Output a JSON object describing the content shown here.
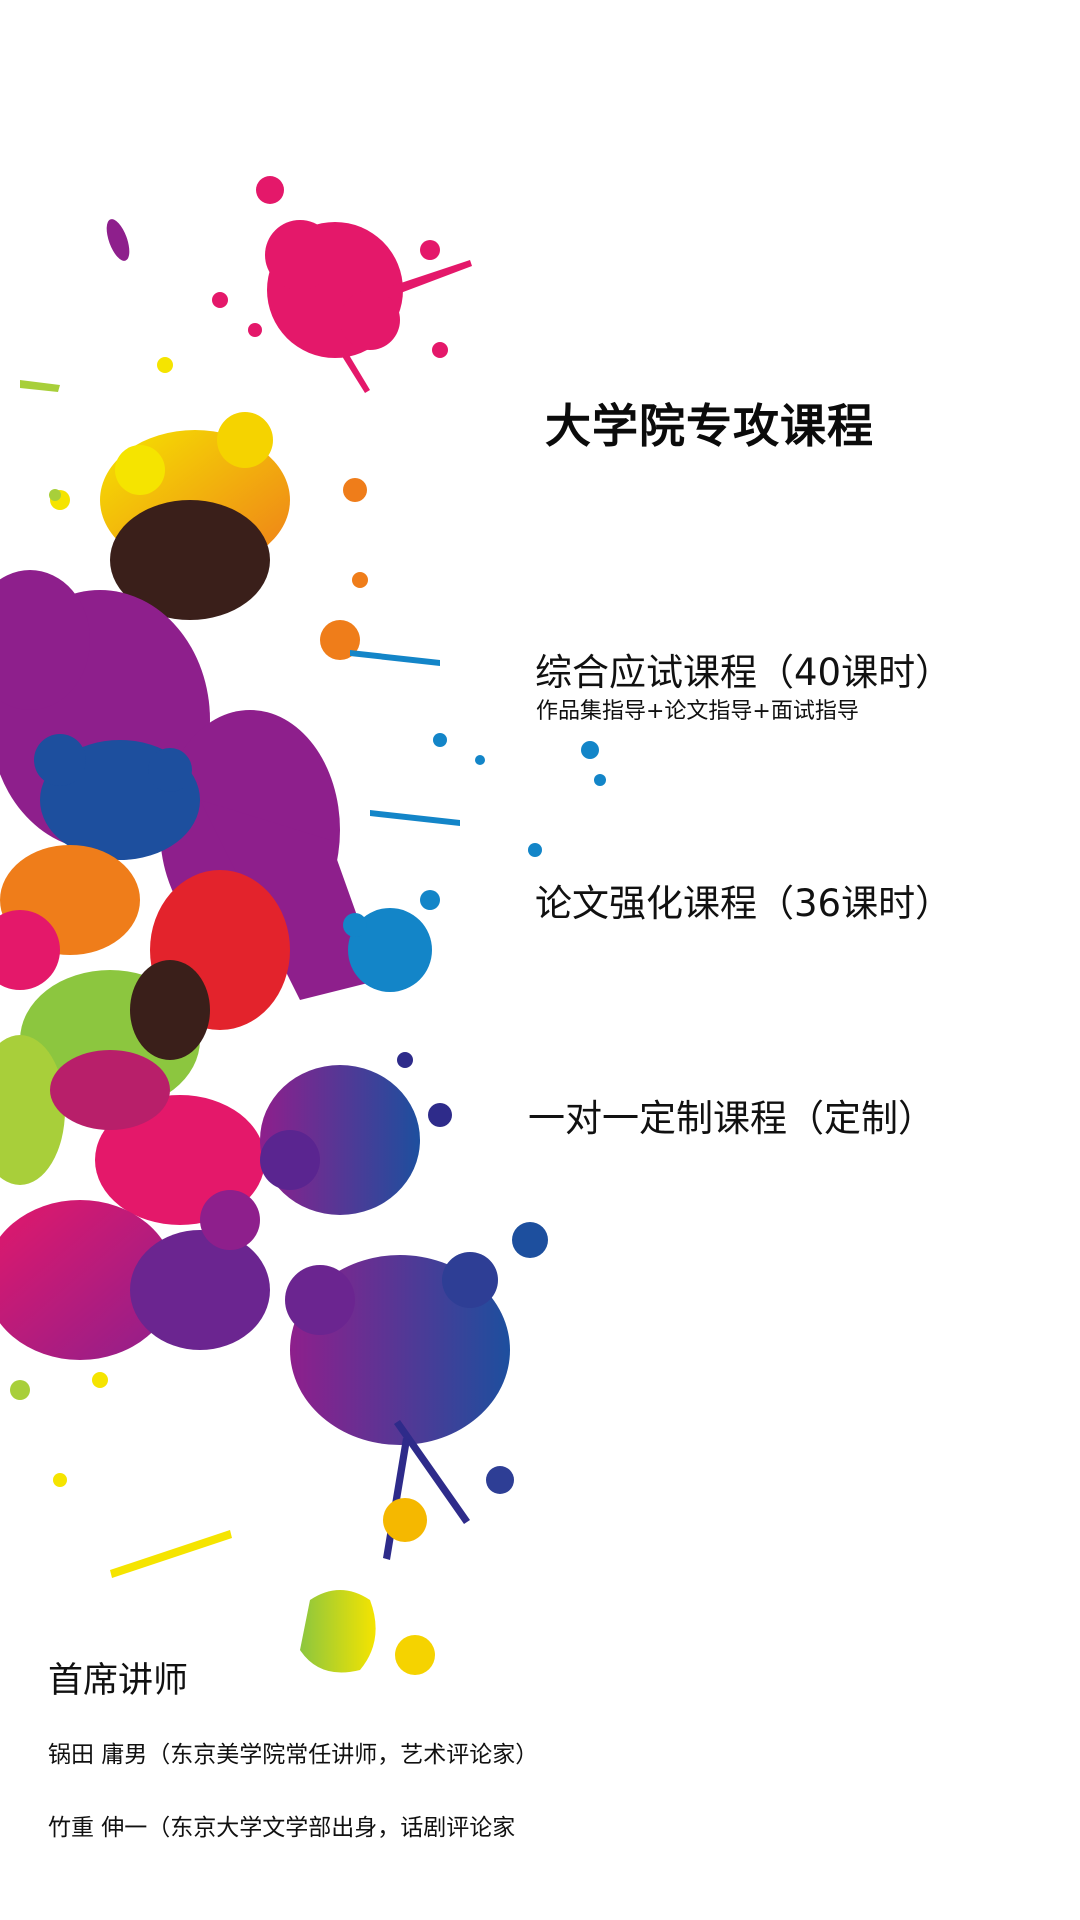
{
  "title": "大学院专攻课程",
  "courses": [
    {
      "name": "综合应试课程（40课时）",
      "detail": "作品集指导+论文指导+面试指导"
    },
    {
      "name": "论文强化课程（36课时）"
    },
    {
      "name": "一对一定制课程（定制）"
    }
  ],
  "instructors": {
    "heading": "首席讲师",
    "items": [
      "锅田 庸男（东京美学院常任讲师，艺术评论家）",
      "竹重 伸一（东京大学文学部出身，话剧评论家"
    ]
  },
  "colors": {
    "magenta": "#e4186a",
    "purple": "#8e1f8c",
    "blue": "#1d4f9e",
    "indigo": "#2e2b8a",
    "cyan": "#1385c8",
    "yellow": "#f5d300",
    "orange": "#ef7d1a",
    "green": "#8cc63f",
    "red": "#e3232c",
    "dark": "#3a1f1a"
  }
}
